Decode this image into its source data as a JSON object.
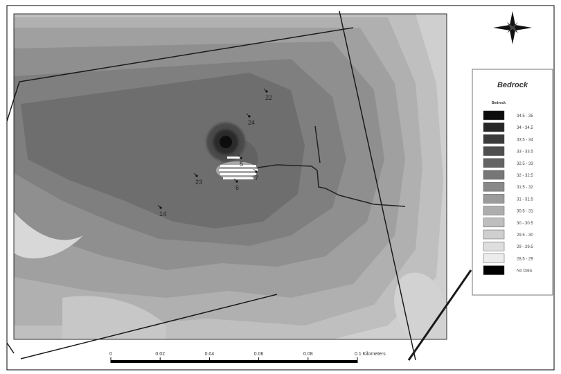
{
  "legend": {
    "title": "Bedrock",
    "subtitle": "Bedrock",
    "classes": [
      {
        "label": "34.5 - 35",
        "color": "#0d0d0d"
      },
      {
        "label": "34 - 34.5",
        "color": "#262626"
      },
      {
        "label": "33.5 - 34",
        "color": "#3b3b3b"
      },
      {
        "label": "33 - 33.5",
        "color": "#4f4f4f"
      },
      {
        "label": "32.5 - 33",
        "color": "#636363"
      },
      {
        "label": "32 - 32.5",
        "color": "#767676"
      },
      {
        "label": "31.5 - 32",
        "color": "#898989"
      },
      {
        "label": "31 - 31.5",
        "color": "#9b9b9b"
      },
      {
        "label": "30.5 - 31",
        "color": "#adadad"
      },
      {
        "label": "30 - 30.5",
        "color": "#bebebe"
      },
      {
        "label": "29.5 - 30",
        "color": "#cfcfcf"
      },
      {
        "label": "29 - 29.5",
        "color": "#dedede"
      },
      {
        "label": "28.5 - 29",
        "color": "#ececec"
      },
      {
        "label": "No Data",
        "color": "#000000"
      }
    ]
  },
  "wells": [
    {
      "label": "22"
    },
    {
      "label": "24"
    },
    {
      "label": "5"
    },
    {
      "label": "23"
    },
    {
      "label": "7"
    },
    {
      "label": "6"
    },
    {
      "label": "14"
    }
  ],
  "scale_bar": {
    "ticks": [
      "0",
      "0.02",
      "0.04",
      "0.06",
      "0.08"
    ],
    "end_label": "0.1 Kilometers"
  },
  "north_arrow": {
    "icon": "compass-rose-icon"
  }
}
